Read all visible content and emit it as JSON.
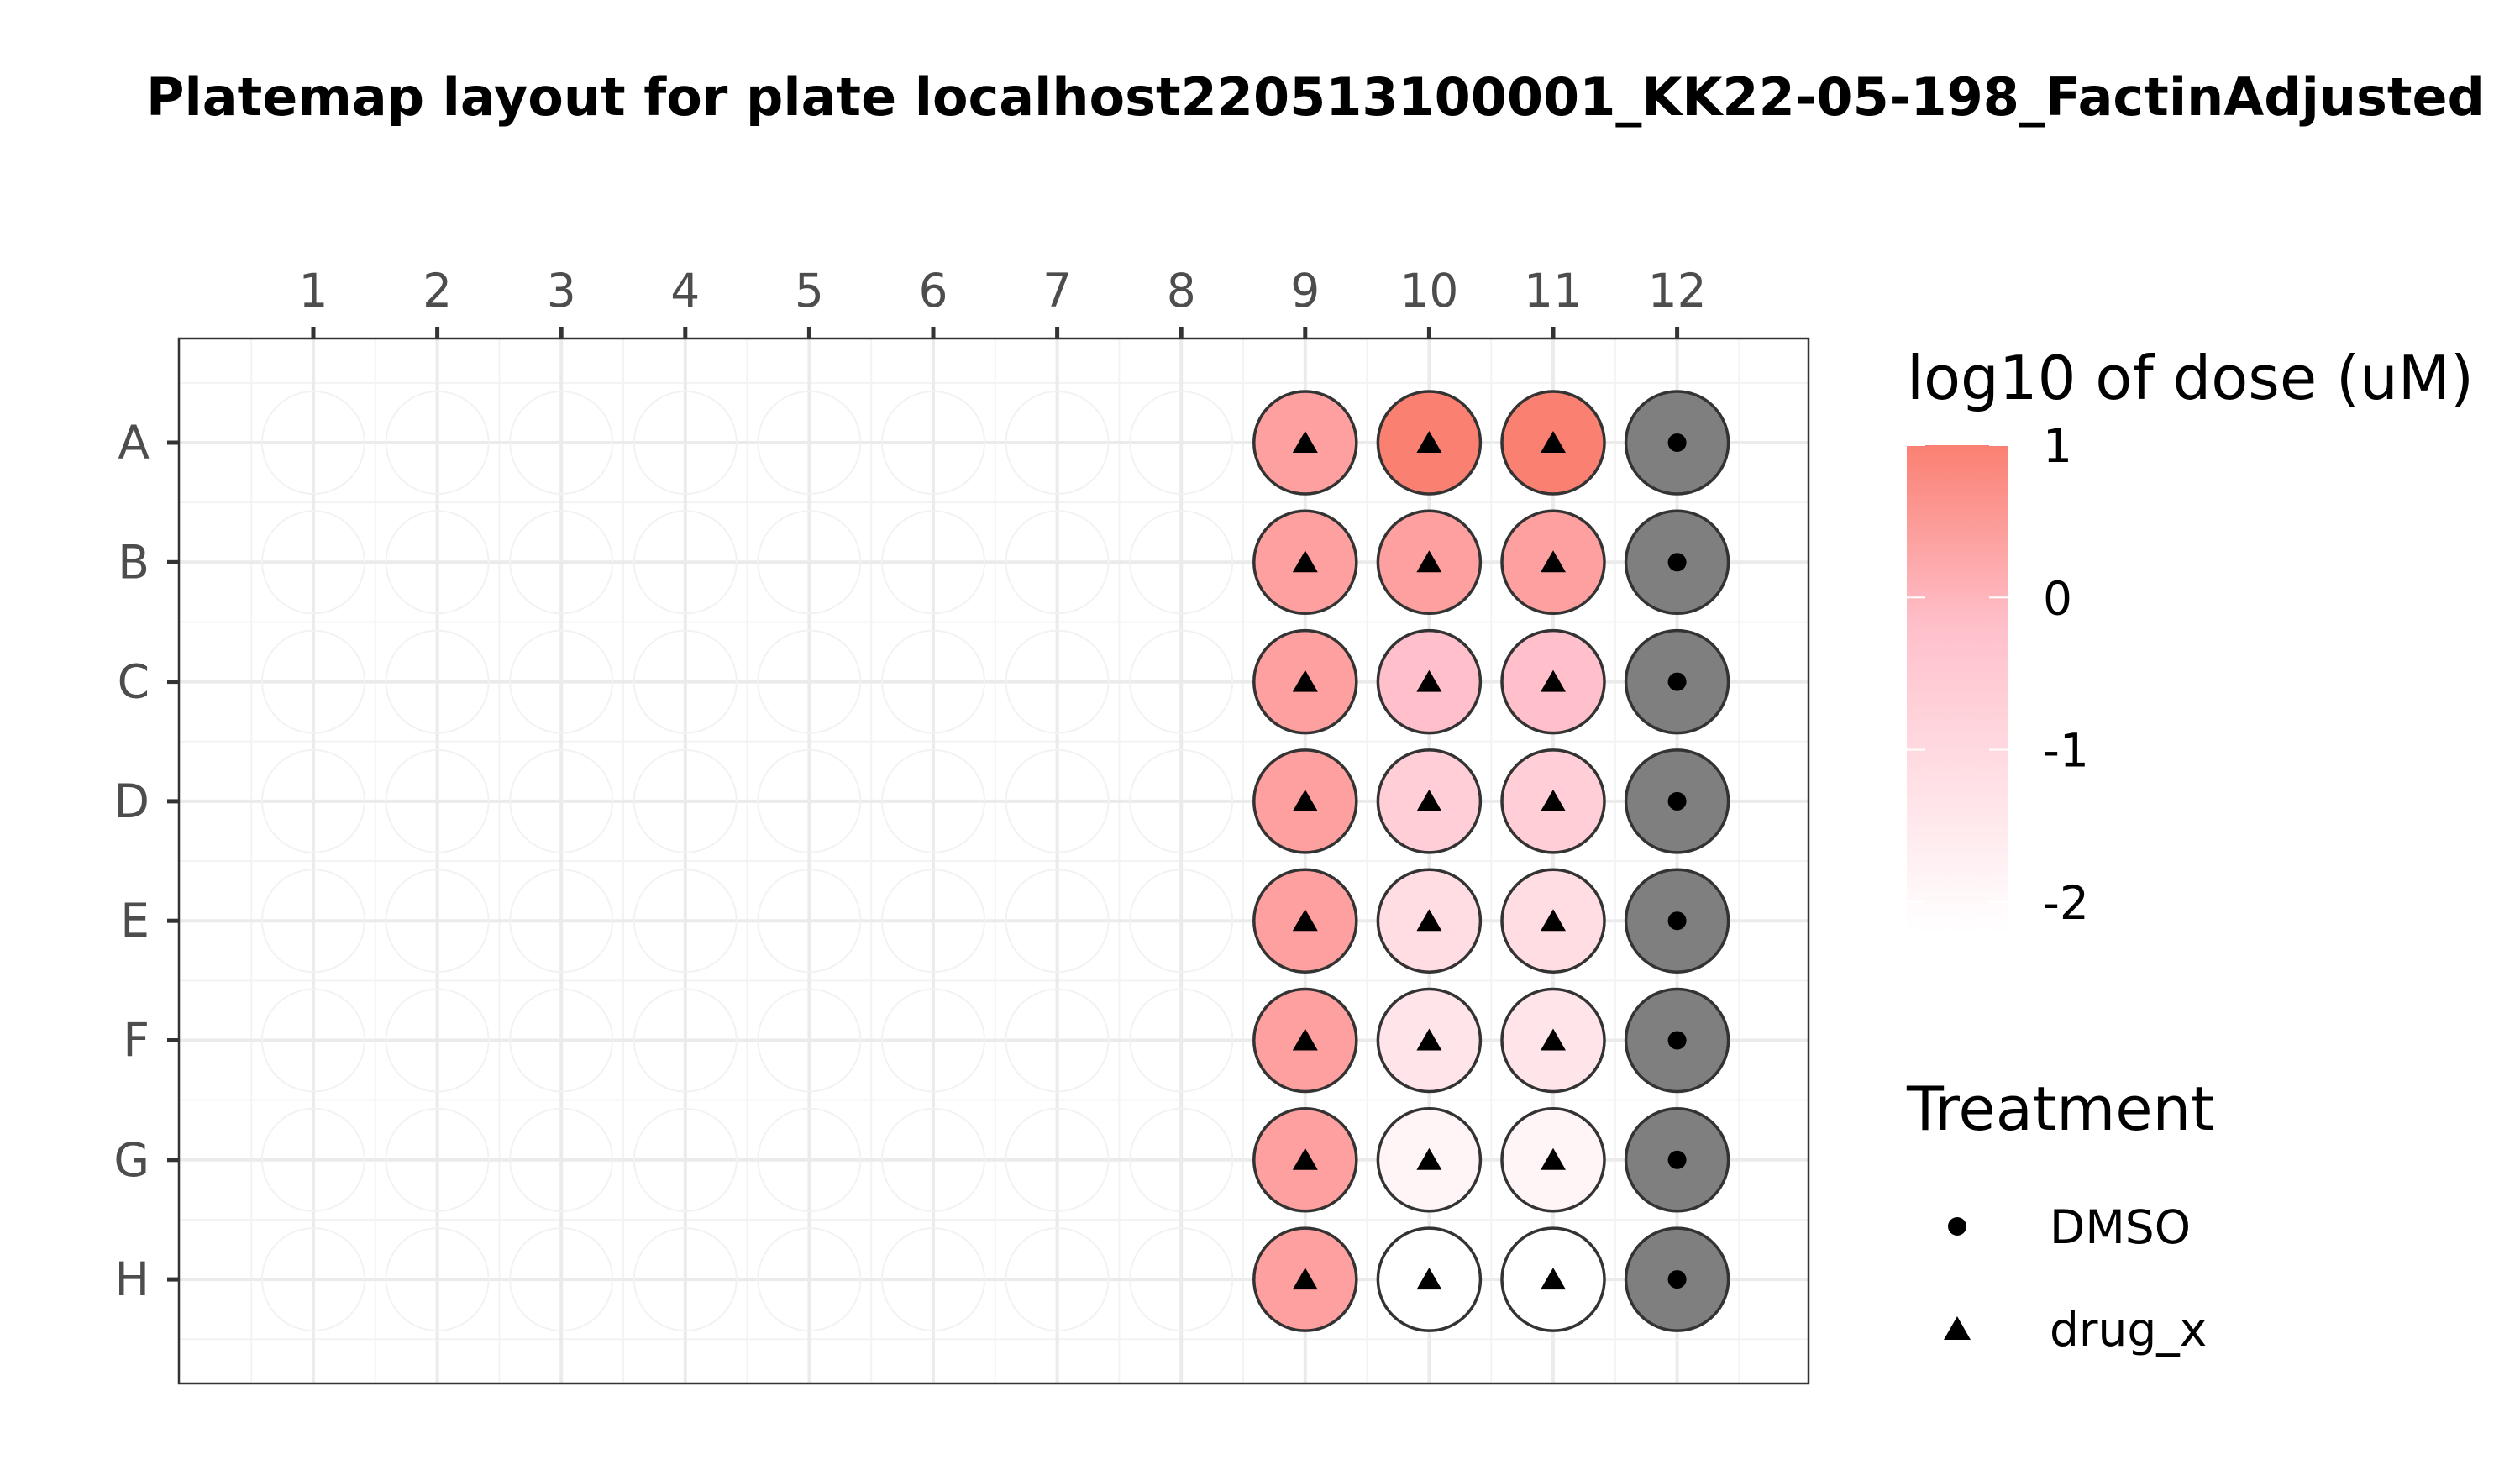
{
  "chart_data": {
    "type": "heatmap",
    "title": "Platemap layout for plate localhost220513100001_KK22-05-198_FactinAdjusted",
    "columns": [
      "1",
      "2",
      "3",
      "4",
      "5",
      "6",
      "7",
      "8",
      "9",
      "10",
      "11",
      "12"
    ],
    "rows": [
      "A",
      "B",
      "C",
      "D",
      "E",
      "F",
      "G",
      "H"
    ],
    "grid": true,
    "colorbar": {
      "title": "log10 of dose (uM)",
      "ticks": [
        "1",
        "0",
        "-1",
        "-2"
      ],
      "tick_values": [
        1,
        0,
        -1,
        -2
      ],
      "range": [
        -2.2,
        1.0
      ],
      "low_color": "#ffffff",
      "mid_color": "#ffc0cb",
      "high_color": "#fa8072"
    },
    "shape_legend": {
      "title": "Treatment",
      "items": [
        {
          "label": "DMSO",
          "shape": "circle"
        },
        {
          "label": "drug_x",
          "shape": "triangle"
        }
      ]
    },
    "wells": [
      {
        "row": "A",
        "col": "9",
        "treatment": "drug_x",
        "log10_dose": 0.5
      },
      {
        "row": "A",
        "col": "10",
        "treatment": "drug_x",
        "log10_dose": 1.0
      },
      {
        "row": "A",
        "col": "11",
        "treatment": "drug_x",
        "log10_dose": 1.0
      },
      {
        "row": "A",
        "col": "12",
        "treatment": "DMSO",
        "log10_dose": null
      },
      {
        "row": "B",
        "col": "9",
        "treatment": "drug_x",
        "log10_dose": 0.5
      },
      {
        "row": "B",
        "col": "10",
        "treatment": "drug_x",
        "log10_dose": 0.5
      },
      {
        "row": "B",
        "col": "11",
        "treatment": "drug_x",
        "log10_dose": 0.5
      },
      {
        "row": "B",
        "col": "12",
        "treatment": "DMSO",
        "log10_dose": null
      },
      {
        "row": "C",
        "col": "9",
        "treatment": "drug_x",
        "log10_dose": 0.5
      },
      {
        "row": "C",
        "col": "10",
        "treatment": "drug_x",
        "log10_dose": 0.0
      },
      {
        "row": "C",
        "col": "11",
        "treatment": "drug_x",
        "log10_dose": 0.0
      },
      {
        "row": "C",
        "col": "12",
        "treatment": "DMSO",
        "log10_dose": null
      },
      {
        "row": "D",
        "col": "9",
        "treatment": "drug_x",
        "log10_dose": 0.5
      },
      {
        "row": "D",
        "col": "10",
        "treatment": "drug_x",
        "log10_dose": -0.5
      },
      {
        "row": "D",
        "col": "11",
        "treatment": "drug_x",
        "log10_dose": -0.5
      },
      {
        "row": "D",
        "col": "12",
        "treatment": "DMSO",
        "log10_dose": null
      },
      {
        "row": "E",
        "col": "9",
        "treatment": "drug_x",
        "log10_dose": 0.5
      },
      {
        "row": "E",
        "col": "10",
        "treatment": "drug_x",
        "log10_dose": -1.0
      },
      {
        "row": "E",
        "col": "11",
        "treatment": "drug_x",
        "log10_dose": -1.0
      },
      {
        "row": "E",
        "col": "12",
        "treatment": "DMSO",
        "log10_dose": null
      },
      {
        "row": "F",
        "col": "9",
        "treatment": "drug_x",
        "log10_dose": 0.5
      },
      {
        "row": "F",
        "col": "10",
        "treatment": "drug_x",
        "log10_dose": -1.3
      },
      {
        "row": "F",
        "col": "11",
        "treatment": "drug_x",
        "log10_dose": -1.3
      },
      {
        "row": "F",
        "col": "12",
        "treatment": "DMSO",
        "log10_dose": null
      },
      {
        "row": "G",
        "col": "9",
        "treatment": "drug_x",
        "log10_dose": 0.5
      },
      {
        "row": "G",
        "col": "10",
        "treatment": "drug_x",
        "log10_dose": -1.8
      },
      {
        "row": "G",
        "col": "11",
        "treatment": "drug_x",
        "log10_dose": -1.8
      },
      {
        "row": "G",
        "col": "12",
        "treatment": "DMSO",
        "log10_dose": null
      },
      {
        "row": "H",
        "col": "9",
        "treatment": "drug_x",
        "log10_dose": 0.5
      },
      {
        "row": "H",
        "col": "10",
        "treatment": "drug_x",
        "log10_dose": -2.2
      },
      {
        "row": "H",
        "col": "11",
        "treatment": "drug_x",
        "log10_dose": -2.2
      },
      {
        "row": "H",
        "col": "12",
        "treatment": "DMSO",
        "log10_dose": null
      }
    ],
    "colors": {
      "panel_border": "#333333",
      "grid_major": "#ebebeb",
      "grid_minor": "#f3f3f3",
      "ghost_well": "#f2f2f2",
      "well_outline": "#333333",
      "dmso_fill": "#7f7f7f"
    }
  }
}
